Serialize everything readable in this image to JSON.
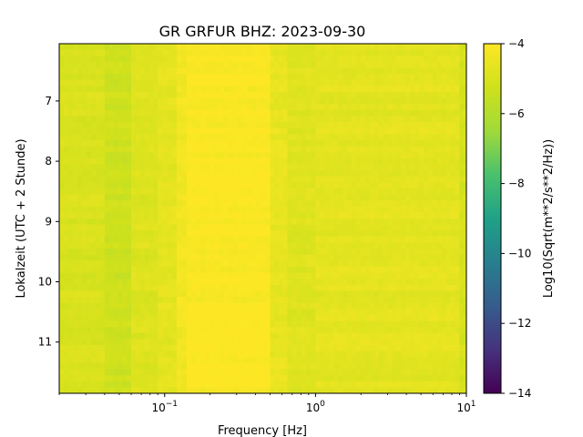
{
  "chart_data": {
    "type": "heatmap",
    "title": "GR GRFUR  BHZ: 2023-09-30",
    "xlabel": "Frequency [Hz]",
    "ylabel": "Lokalzeit (UTC + 2 Stunde)",
    "x_scale": "log",
    "xlim": [
      0.02,
      10
    ],
    "x_ticks": [
      {
        "value": 0.1,
        "base": "10",
        "exp": "−1"
      },
      {
        "value": 1,
        "base": "10",
        "exp": "0"
      },
      {
        "value": 10,
        "base": "10",
        "exp": "1"
      }
    ],
    "ylim": [
      6.05,
      11.85
    ],
    "y_inverted": true,
    "y_ticks": [
      7,
      8,
      9,
      10,
      11
    ],
    "colorbar": {
      "label": "Log10(Sqrt(m**2/s**2/Hz))",
      "colormap": "viridis",
      "range": [
        -14,
        -4
      ],
      "ticks": [
        -4,
        -6,
        -8,
        -10,
        -12,
        -14
      ],
      "tick_labels": [
        "−4",
        "−6",
        "−8",
        "−10",
        "−12",
        "−14"
      ]
    },
    "frequency_bands": [
      {
        "f_min": 0.02,
        "f_max": 0.04,
        "value": -5.0
      },
      {
        "f_min": 0.04,
        "f_max": 0.06,
        "value": -5.3
      },
      {
        "f_min": 0.06,
        "f_max": 0.09,
        "value": -4.9
      },
      {
        "f_min": 0.09,
        "f_max": 0.12,
        "value": -4.7
      },
      {
        "f_min": 0.12,
        "f_max": 0.14,
        "value": -4.3
      },
      {
        "f_min": 0.14,
        "f_max": 0.5,
        "value": -4.05
      },
      {
        "f_min": 0.5,
        "f_max": 0.65,
        "value": -4.55
      },
      {
        "f_min": 0.65,
        "f_max": 1.0,
        "value": -4.85
      },
      {
        "f_min": 1.0,
        "f_max": 9.0,
        "value": -4.7
      },
      {
        "f_min": 9.0,
        "f_max": 10,
        "value": -5.1
      }
    ]
  }
}
